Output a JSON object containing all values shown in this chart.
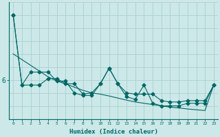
{
  "xlabel": "Humidex (Indice chaleur)",
  "ylabel": "",
  "background_color": "#cce8e8",
  "grid_color": "#aad0d0",
  "line_color": "#006666",
  "x_values": [
    0,
    1,
    2,
    3,
    4,
    5,
    6,
    7,
    8,
    9,
    10,
    11,
    12,
    13,
    14,
    15,
    16,
    17,
    18,
    19,
    20,
    21,
    22,
    23
  ],
  "series1": [
    8.5,
    5.8,
    5.8,
    5.8,
    6.05,
    6.05,
    5.85,
    5.85,
    5.45,
    5.5,
    5.85,
    6.45,
    5.85,
    5.35,
    5.25,
    5.8,
    5.1,
    5.0,
    5.0,
    5.0,
    5.1,
    5.1,
    5.1,
    5.8
  ],
  "series2": [
    8.5,
    5.8,
    6.3,
    6.3,
    6.3,
    5.95,
    5.95,
    5.5,
    5.4,
    5.4,
    5.85,
    6.45,
    5.85,
    5.5,
    5.45,
    5.45,
    5.45,
    5.2,
    5.15,
    5.15,
    5.2,
    5.2,
    5.2,
    5.8
  ],
  "series_trend": [
    7.0,
    6.78,
    6.56,
    6.34,
    6.12,
    5.95,
    5.85,
    5.72,
    5.6,
    5.5,
    5.45,
    5.38,
    5.3,
    5.22,
    5.15,
    5.1,
    5.05,
    5.0,
    4.95,
    4.92,
    4.88,
    4.85,
    4.82,
    5.8
  ],
  "ytick_labels": [
    "6"
  ],
  "ytick_positions": [
    6.0
  ],
  "ylim": [
    4.5,
    9.0
  ],
  "xlim": [
    -0.5,
    23.5
  ],
  "figsize": [
    3.2,
    2.0
  ],
  "dpi": 100
}
